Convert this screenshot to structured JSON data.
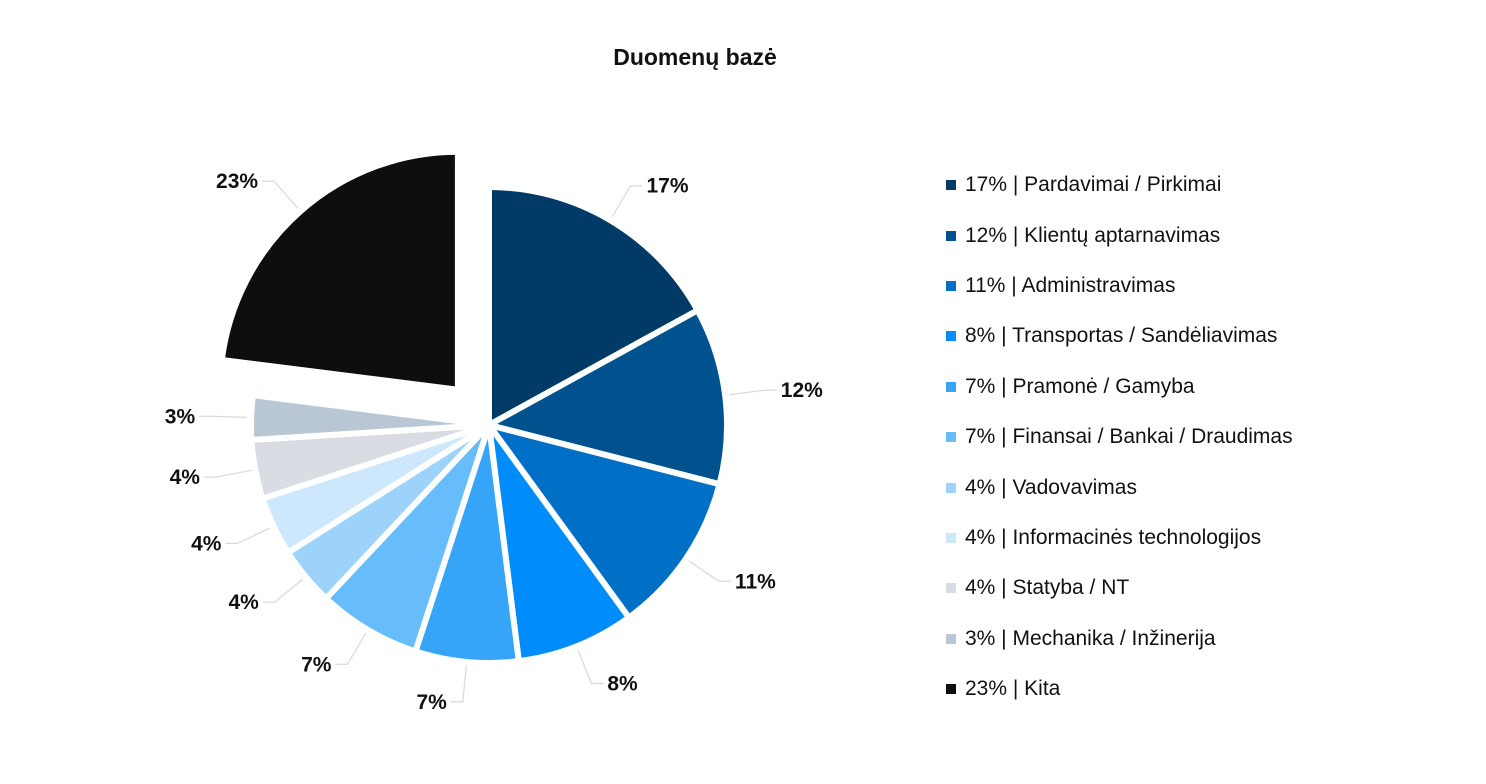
{
  "chart_data": {
    "type": "pie",
    "title": "Duomenų bazė",
    "exploded_slice": "Kita",
    "slices": [
      {
        "pct": 17,
        "label": "17%",
        "legend": "17% | Pardavimai / Pirkimai",
        "color": "#003a66"
      },
      {
        "pct": 12,
        "label": "12%",
        "legend": "12% | Klientų aptarnavimas",
        "color": "#00528f"
      },
      {
        "pct": 11,
        "label": "11%",
        "legend": "11% | Administravimas",
        "color": "#0070c6"
      },
      {
        "pct": 8,
        "label": "8%",
        "legend": "8% | Transportas / Sandėliavimas",
        "color": "#008cfa"
      },
      {
        "pct": 7,
        "label": "7%",
        "legend": "7% | Pramonė / Gamyba",
        "color": "#36a5f8"
      },
      {
        "pct": 7,
        "label": "7%",
        "legend": "7% | Finansai / Bankai / Draudimas",
        "color": "#67bcfb"
      },
      {
        "pct": 4,
        "label": "4%",
        "legend": "4% | Vadovavimas",
        "color": "#9dd2fb"
      },
      {
        "pct": 4,
        "label": "4%",
        "legend": "4% | Informacinės technologijos",
        "color": "#cde7fd"
      },
      {
        "pct": 4,
        "label": "4%",
        "legend": "4% | Statyba / NT",
        "color": "#d9dde3"
      },
      {
        "pct": 3,
        "label": "3%",
        "legend": "3% | Mechanika / Inžinerija",
        "color": "#b9c6d3"
      },
      {
        "pct": 23,
        "label": "23%",
        "legend": "23% | Kita",
        "color": "#0e0e0e"
      }
    ]
  }
}
